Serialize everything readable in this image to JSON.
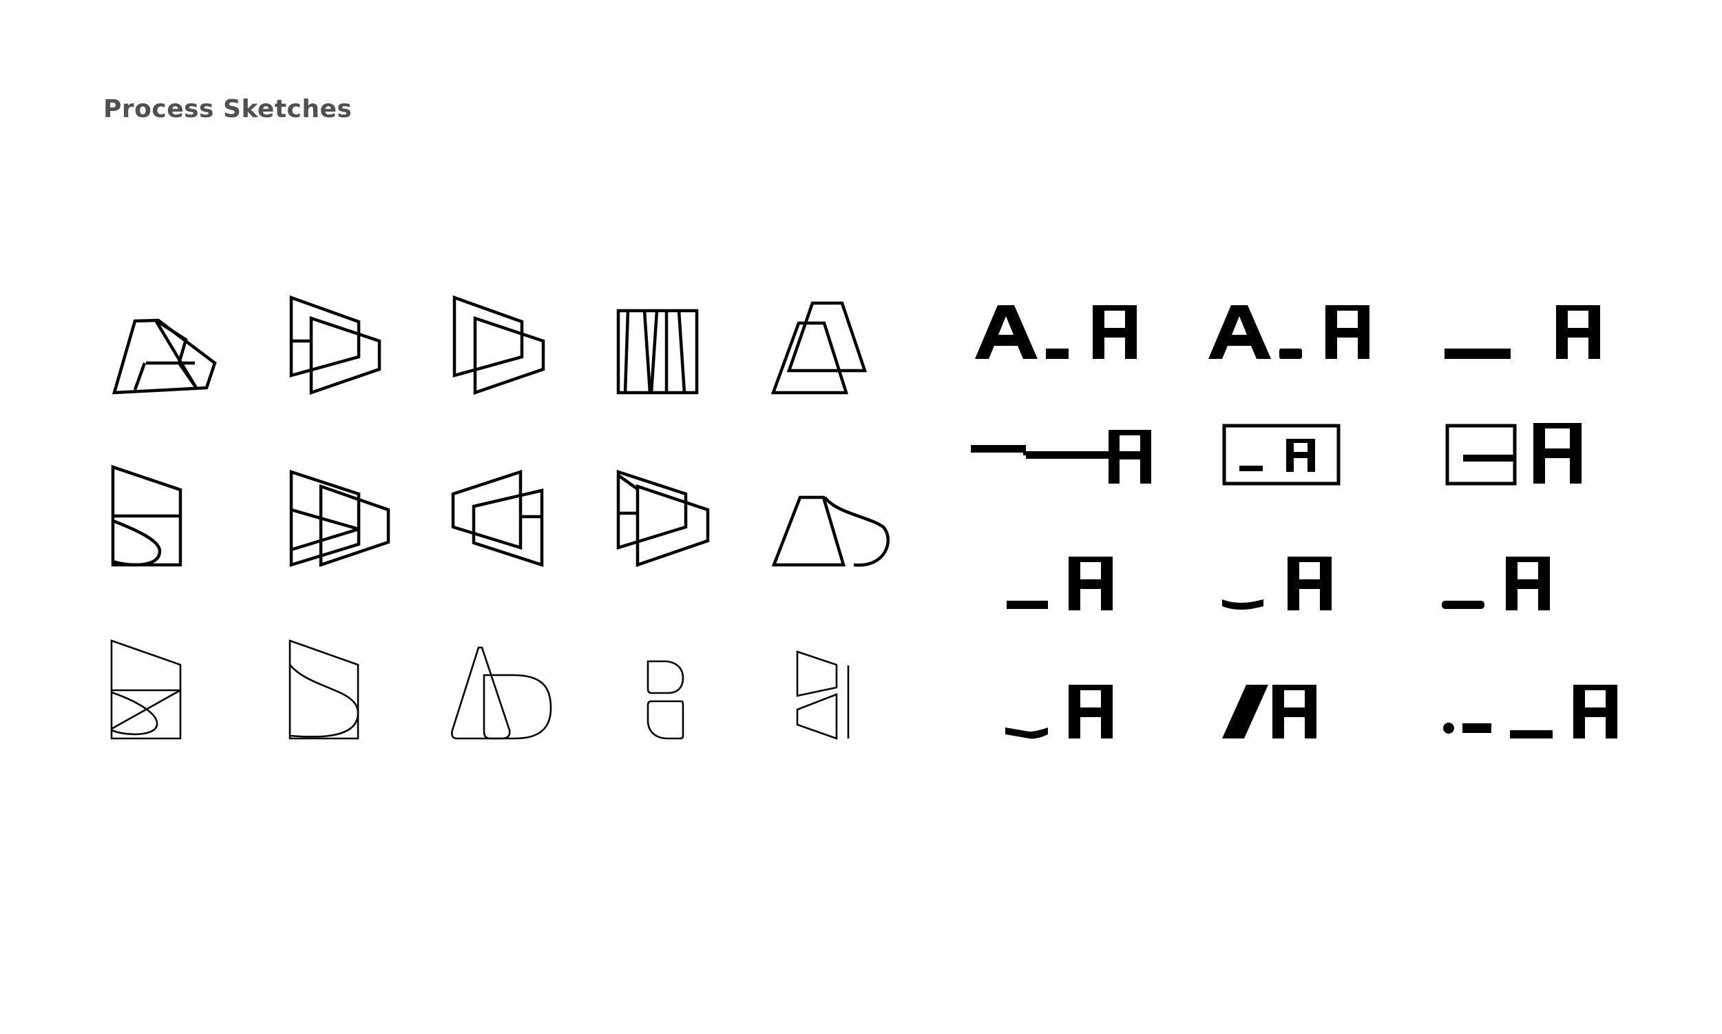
{
  "page": {
    "title": "Process Sketches"
  },
  "sketches": {
    "outline_icons": [
      "overlapping-parallelogram-sketch",
      "nested-trapezoid-sketch",
      "offset-trapezoid-sketch",
      "vertical-bars-sketch",
      "double-a-sketch",
      "s-curve-box-sketch",
      "layered-trapezoid-sketch",
      "interlocked-trapezoid-sketch",
      "angled-trapezoid-sketch",
      "a-with-wave-sketch",
      "thin-s-lines-sketch",
      "thin-s-curve-sketch",
      "thin-a-d-sketch",
      "thin-d-halves-sketch",
      "thin-wedges-sketch"
    ],
    "wordmark_variants": [
      "A_H",
      "A_H",
      "__H",
      "--__H",
      "[_H]",
      "[=]H",
      "_H",
      "_H",
      "_H",
      "_H",
      "/H",
      "•-_ _H"
    ]
  }
}
